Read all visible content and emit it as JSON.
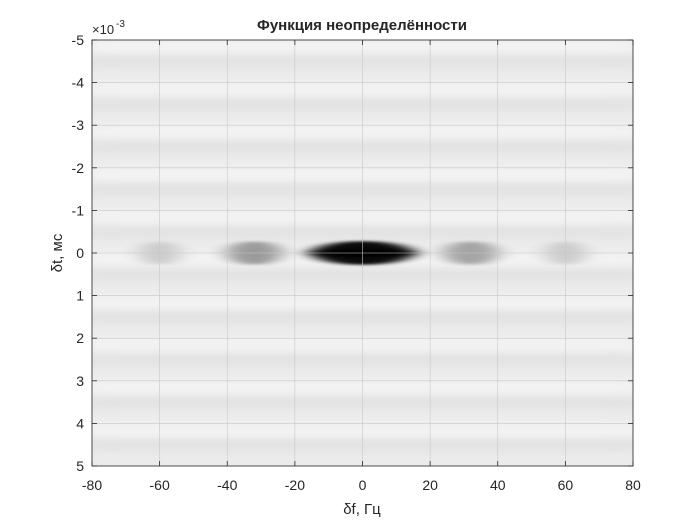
{
  "chart_data": {
    "type": "heatmap",
    "title": "Функция неопределённости",
    "xlabel": "δf, Гц",
    "ylabel": "δt, мс",
    "xlim": [
      -80,
      80
    ],
    "ylim": [
      -5,
      5
    ],
    "y_direction": "reversed",
    "y_exponent_label": "×10",
    "y_exponent_power": "-3",
    "x_ticks": [
      "-80",
      "-60",
      "-40",
      "-20",
      "0",
      "20",
      "40",
      "60",
      "80"
    ],
    "y_ticks": [
      "-5",
      "-4",
      "-3",
      "-2",
      "-1",
      "0",
      "1",
      "2",
      "3",
      "4",
      "5"
    ],
    "grid": true,
    "colormap": "gray-reversed",
    "background_level": "light gray with faint horizontal banding",
    "features": [
      {
        "label": "main peak",
        "df": 0,
        "dt": 0,
        "intensity": 1.0,
        "half_width_df": 15,
        "half_width_dt": 0.08
      },
      {
        "label": "sidelobe",
        "df": -32,
        "dt": 0,
        "intensity": 0.35,
        "half_width_df": 8,
        "half_width_dt": 0.08
      },
      {
        "label": "sidelobe",
        "df": 32,
        "dt": 0,
        "intensity": 0.3,
        "half_width_df": 8,
        "half_width_dt": 0.08
      },
      {
        "label": "sidelobe",
        "df": -60,
        "dt": 0,
        "intensity": 0.12,
        "half_width_df": 6,
        "half_width_dt": 0.08
      },
      {
        "label": "sidelobe",
        "df": 60,
        "dt": 0,
        "intensity": 0.12,
        "half_width_df": 6,
        "half_width_dt": 0.08
      }
    ]
  }
}
